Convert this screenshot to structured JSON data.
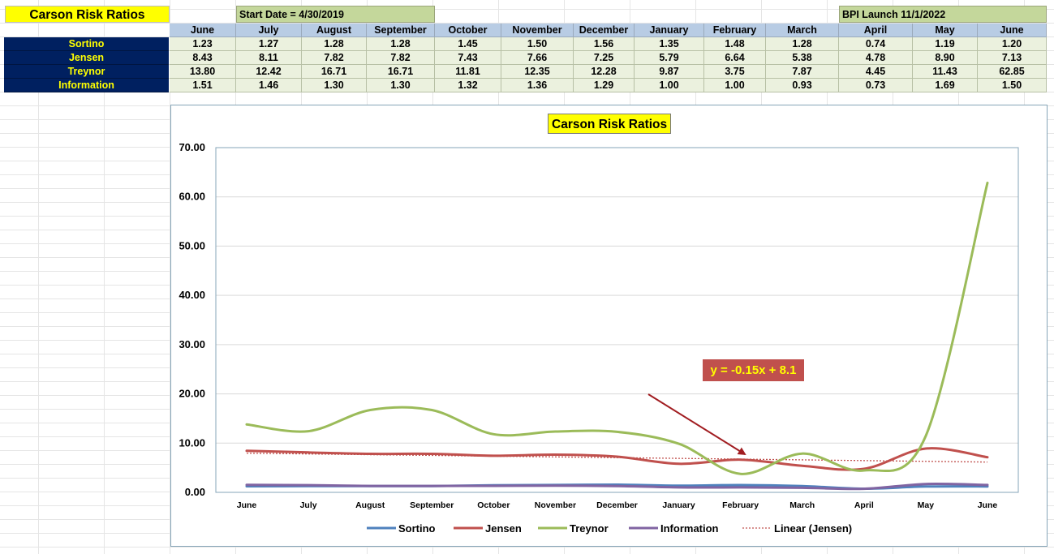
{
  "table": {
    "title": "Carson Risk Ratios",
    "start_date": "Start Date = 4/30/2019",
    "bpi_launch": "BPI Launch 11/1/2022",
    "months": [
      "June",
      "July",
      "August",
      "September",
      "October",
      "November",
      "December",
      "January",
      "February",
      "March",
      "April",
      "May",
      "June"
    ],
    "rows": [
      {
        "label": "Sortino",
        "values": [
          "1.23",
          "1.27",
          "1.28",
          "1.28",
          "1.45",
          "1.50",
          "1.56",
          "1.35",
          "1.48",
          "1.28",
          "0.74",
          "1.19",
          "1.20"
        ]
      },
      {
        "label": "Jensen",
        "values": [
          "8.43",
          "8.11",
          "7.82",
          "7.82",
          "7.43",
          "7.66",
          "7.25",
          "5.79",
          "6.64",
          "5.38",
          "4.78",
          "8.90",
          "7.13"
        ]
      },
      {
        "label": "Treynor",
        "values": [
          "13.80",
          "12.42",
          "16.71",
          "16.71",
          "11.81",
          "12.35",
          "12.28",
          "9.87",
          "3.75",
          "7.87",
          "4.45",
          "11.43",
          "62.85"
        ]
      },
      {
        "label": "Information",
        "values": [
          "1.51",
          "1.46",
          "1.30",
          "1.30",
          "1.32",
          "1.36",
          "1.29",
          "1.00",
          "1.00",
          "0.93",
          "0.73",
          "1.69",
          "1.50"
        ]
      }
    ]
  },
  "chart_data": {
    "type": "line",
    "title": "Carson Risk Ratios",
    "categories": [
      "June",
      "July",
      "August",
      "September",
      "October",
      "November",
      "December",
      "January",
      "February",
      "March",
      "April",
      "May",
      "June"
    ],
    "series": [
      {
        "name": "Sortino",
        "color": "#4f81bd",
        "values": [
          1.23,
          1.27,
          1.28,
          1.28,
          1.45,
          1.5,
          1.56,
          1.35,
          1.48,
          1.28,
          0.74,
          1.19,
          1.2
        ]
      },
      {
        "name": "Jensen",
        "color": "#c0504d",
        "values": [
          8.43,
          8.11,
          7.82,
          7.82,
          7.43,
          7.66,
          7.25,
          5.79,
          6.64,
          5.38,
          4.78,
          8.9,
          7.13
        ]
      },
      {
        "name": "Treynor",
        "color": "#9bbb59",
        "values": [
          13.8,
          12.42,
          16.71,
          16.71,
          11.81,
          12.35,
          12.28,
          9.87,
          3.75,
          7.87,
          4.45,
          11.43,
          62.85
        ]
      },
      {
        "name": "Information",
        "color": "#8064a2",
        "values": [
          1.51,
          1.46,
          1.3,
          1.3,
          1.32,
          1.36,
          1.29,
          1.0,
          1.0,
          0.93,
          0.73,
          1.69,
          1.5
        ]
      }
    ],
    "trendline": {
      "name": "Linear (Jensen)",
      "color": "#c0504d",
      "slope": -0.15,
      "intercept": 8.1,
      "label": "y = -0.15x + 8.1"
    },
    "ylim": [
      0,
      70
    ],
    "yticks": [
      "0.00",
      "10.00",
      "20.00",
      "30.00",
      "40.00",
      "50.00",
      "60.00",
      "70.00"
    ],
    "grid": true,
    "legend_position": "bottom"
  }
}
